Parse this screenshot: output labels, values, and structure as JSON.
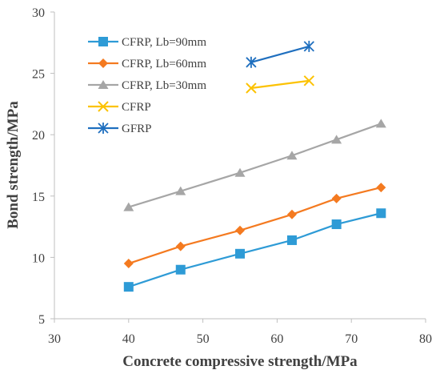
{
  "chart_data": {
    "type": "line",
    "xlabel": "Concrete compressive strength/MPa",
    "ylabel": "Bond strength/MPa",
    "xlim": [
      30,
      80
    ],
    "ylim": [
      5,
      30
    ],
    "x_ticks": [
      30,
      40,
      50,
      60,
      70,
      80
    ],
    "y_ticks": [
      5,
      10,
      15,
      20,
      25,
      30
    ],
    "grid": false,
    "legend": "top-left",
    "series": [
      {
        "name": "CFRP, Lb=90mm",
        "color": "#2e9bd6",
        "marker": "square",
        "x": [
          40,
          47,
          55,
          62,
          68,
          74
        ],
        "y": [
          7.6,
          9.0,
          10.3,
          11.4,
          12.7,
          13.6
        ]
      },
      {
        "name": "CFRP, Lb=60mm",
        "color": "#f47a20",
        "marker": "diamond",
        "x": [
          40,
          47,
          55,
          62,
          68,
          74
        ],
        "y": [
          9.5,
          10.9,
          12.2,
          13.5,
          14.8,
          15.7
        ]
      },
      {
        "name": "CFRP, Lb=30mm",
        "color": "#a6a6a6",
        "marker": "triangle",
        "x": [
          40,
          47,
          55,
          62,
          68,
          74
        ],
        "y": [
          14.1,
          15.4,
          16.9,
          18.3,
          19.6,
          20.9
        ]
      },
      {
        "name": "CFRP",
        "color": "#fcc203",
        "marker": "x",
        "x": [
          56.5,
          64.3
        ],
        "y": [
          23.8,
          24.4
        ]
      },
      {
        "name": "GFRP",
        "color": "#1f6fbf",
        "marker": "asterisk",
        "x": [
          56.5,
          64.3
        ],
        "y": [
          25.9,
          27.2
        ]
      }
    ]
  }
}
